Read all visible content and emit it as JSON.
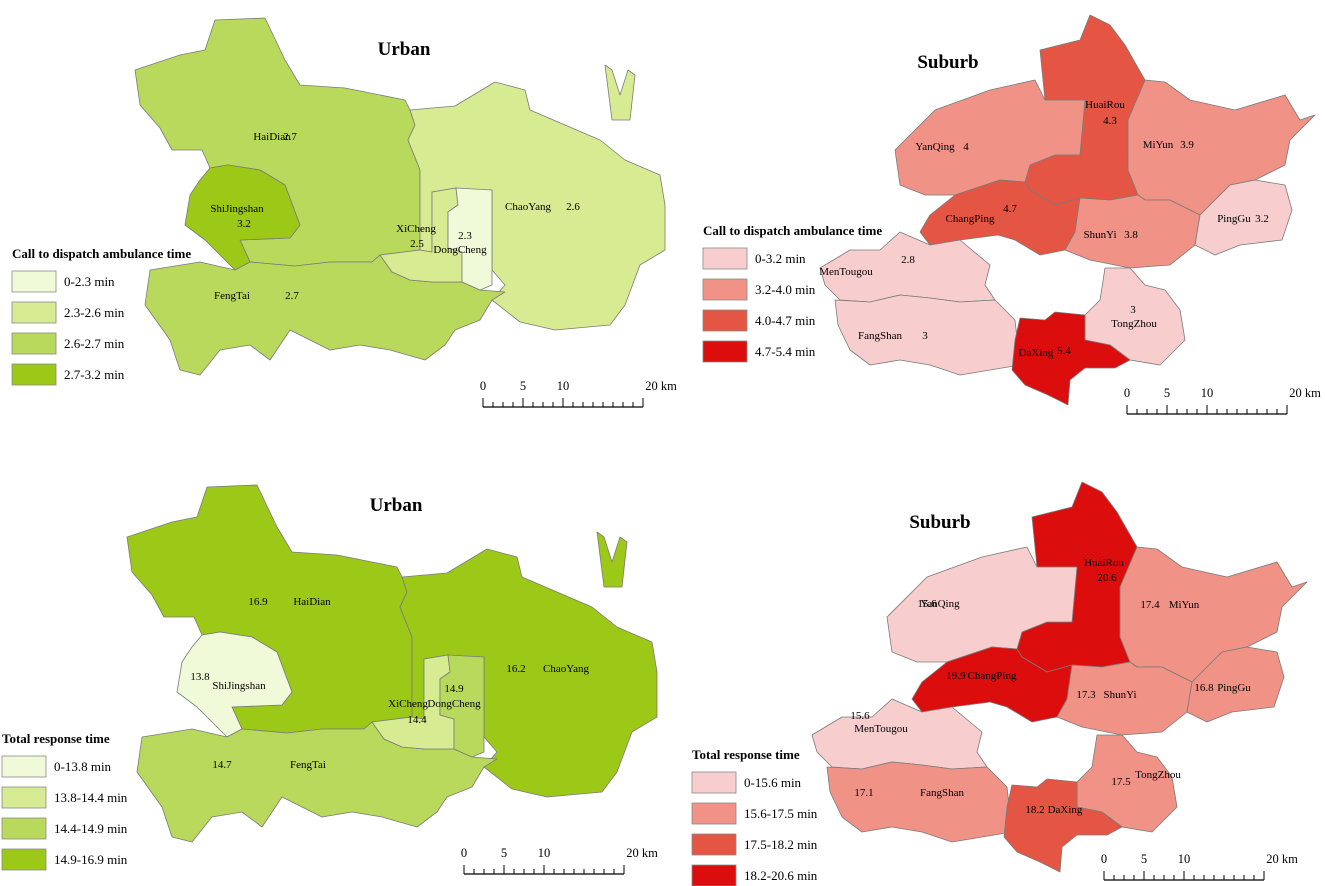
{
  "colors": {
    "urban_ramp": [
      "#f1fad8",
      "#d7eb92",
      "#b8d95c",
      "#9cc818"
    ],
    "suburb_ramp": [
      "#f7cdcd",
      "#f09286",
      "#e45543",
      "#dc0d0d"
    ],
    "boundary": "#7a7a7a"
  },
  "scale_bar": {
    "labels": [
      "0",
      "5",
      "10",
      "20 km"
    ]
  },
  "panels": [
    {
      "title": "Urban",
      "legend": {
        "title": "Call to dispatch ambulance time",
        "items": [
          "0-2.3 min",
          "2.3-2.6 min",
          "2.6-2.7 min",
          "2.7-3.2 min"
        ]
      },
      "districts": [
        {
          "name": "HaiDian",
          "value": "2.7",
          "class": 2
        },
        {
          "name": "ShiJingshan",
          "value": "3.2",
          "class": 3
        },
        {
          "name": "ChaoYang",
          "value": "2.6",
          "class": 1
        },
        {
          "name": "FengTai",
          "value": "2.7",
          "class": 2
        },
        {
          "name": "XiCheng",
          "value": "2.5",
          "class": 1
        },
        {
          "name": "DongCheng",
          "value": "2.3",
          "class": 0
        }
      ]
    },
    {
      "title": "Suburb",
      "legend": {
        "title": "Call to dispatch ambulance time",
        "items": [
          "0-3.2 min",
          "3.2-4.0 min",
          "4.0-4.7 min",
          "4.7-5.4 min"
        ]
      },
      "districts": [
        {
          "name": "HuaiRou",
          "value": "4.3",
          "class": 2
        },
        {
          "name": "YanQing",
          "value": "4",
          "class": 1
        },
        {
          "name": "MiYun",
          "value": "3.9",
          "class": 1
        },
        {
          "name": "ChangPing",
          "value": "4.7",
          "class": 2
        },
        {
          "name": "ShunYi",
          "value": "3.8",
          "class": 1
        },
        {
          "name": "PingGu",
          "value": "3.2",
          "class": 0
        },
        {
          "name": "MenTougou",
          "value": "2.8",
          "class": 0
        },
        {
          "name": "FangShan",
          "value": "3",
          "class": 0
        },
        {
          "name": "TongZhou",
          "value": "3",
          "class": 0
        },
        {
          "name": "DaXing",
          "value": "5.4",
          "class": 3
        }
      ]
    },
    {
      "title": "Urban",
      "legend": {
        "title": "Total response time",
        "items": [
          "0-13.8 min",
          "13.8-14.4 min",
          "14.4-14.9 min",
          "14.9-16.9 min"
        ]
      },
      "districts": [
        {
          "name": "HaiDian",
          "value": "16.9",
          "class": 3
        },
        {
          "name": "ShiJingshan",
          "value": "13.8",
          "class": 0
        },
        {
          "name": "ChaoYang",
          "value": "16.2",
          "class": 3
        },
        {
          "name": "FengTai",
          "value": "14.7",
          "class": 2
        },
        {
          "name": "XiCheng",
          "value": "14.4",
          "class": 1
        },
        {
          "name": "DongCheng",
          "value": "14.9",
          "class": 2
        }
      ]
    },
    {
      "title": "Suburb",
      "legend": {
        "title": "Total response time",
        "items": [
          "0-15.6 min",
          "15.6-17.5  min",
          "17.5-18.2 min",
          "18.2-20.6 min"
        ]
      },
      "districts": [
        {
          "name": "HuaiRou",
          "value": "20.6",
          "class": 3
        },
        {
          "name": "YanQing",
          "value": "15.6",
          "class": 0
        },
        {
          "name": "MiYun",
          "value": "17.4",
          "class": 1
        },
        {
          "name": "ChangPing",
          "value": "19.9",
          "class": 3
        },
        {
          "name": "ShunYi",
          "value": "17.3",
          "class": 1
        },
        {
          "name": "PingGu",
          "value": "16.8",
          "class": 1
        },
        {
          "name": "MenTougou",
          "value": "15.6",
          "class": 0
        },
        {
          "name": "FangShan",
          "value": "17.1",
          "class": 1
        },
        {
          "name": "TongZhou",
          "value": "17.5",
          "class": 1
        },
        {
          "name": "DaXing",
          "value": "18.2",
          "class": 2
        }
      ]
    }
  ]
}
